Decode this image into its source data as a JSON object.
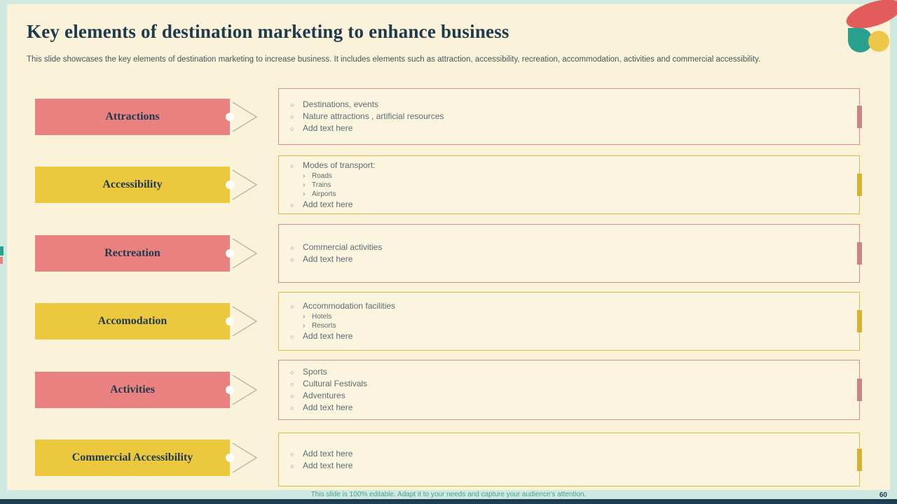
{
  "slide": {
    "title": "Key elements of destination marketing to enhance business",
    "subtitle": "This slide showcases the key elements of destination marketing to increase business. It includes elements such as attraction, accessibility, recreation, accommodation, activities and commercial accessibility.",
    "footer": "This slide is 100% editable. Adapt it to your needs and capture your audience's attention.",
    "page_number": "60"
  },
  "glyphs": {
    "main": "○",
    "sub": "›"
  },
  "colors": {
    "coral": "#e98181",
    "coral_dark": "#d98a8a",
    "yellow": "#ecc83e",
    "yellow_dark": "#dabd4e",
    "ink": "#1e3a4d",
    "bullet_text": "#5d6b75",
    "slide_bg": "#faf3da",
    "page_bg": "#cfe8e0",
    "footer_text": "#43a392",
    "bottom_bar": "#1d3d52"
  },
  "rows": [
    {
      "label": "Attractions",
      "theme": "coral",
      "bullets": [
        {
          "level": 1,
          "text": "Destinations, events"
        },
        {
          "level": 1,
          "text": "Nature attractions , artificial resources"
        },
        {
          "level": 1,
          "text": "Add text here"
        }
      ]
    },
    {
      "label": "Accessibility",
      "theme": "yellow",
      "bullets": [
        {
          "level": 1,
          "text": "Modes of transport:"
        },
        {
          "level": 2,
          "text": "Roads"
        },
        {
          "level": 2,
          "text": "Trains"
        },
        {
          "level": 2,
          "text": "Airports"
        },
        {
          "level": 1,
          "text": "Add text here"
        }
      ]
    },
    {
      "label": "Rectreation",
      "theme": "coral",
      "bullets": [
        {
          "level": 1,
          "text": "Commercial activities"
        },
        {
          "level": 1,
          "text": "Add text here"
        }
      ]
    },
    {
      "label": "Accomodation",
      "theme": "yellow",
      "bullets": [
        {
          "level": 1,
          "text": "Accommodation facilities"
        },
        {
          "level": 2,
          "text": "Hotels"
        },
        {
          "level": 2,
          "text": "Resorts"
        },
        {
          "level": 1,
          "text": "Add text here"
        }
      ]
    },
    {
      "label": "Activities",
      "theme": "coral",
      "bullets": [
        {
          "level": 1,
          "text": "Sports"
        },
        {
          "level": 1,
          "text": "Cultural Festivals"
        },
        {
          "level": 1,
          "text": "Adventures"
        },
        {
          "level": 1,
          "text": "Add text here"
        }
      ]
    },
    {
      "label": "Commercial Accessibility",
      "theme": "yellow",
      "bullets": [
        {
          "level": 1,
          "text": "Add text here"
        },
        {
          "level": 1,
          "text": "Add text here"
        }
      ]
    }
  ]
}
